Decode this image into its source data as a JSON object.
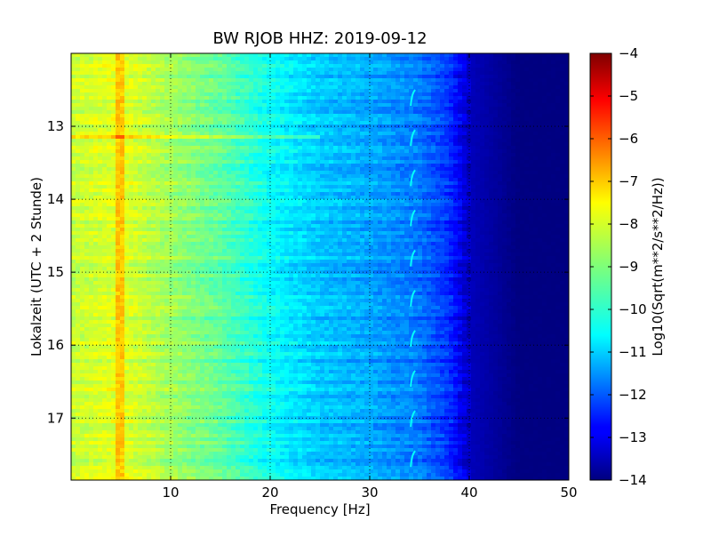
{
  "chart_data": {
    "type": "heatmap",
    "title": "BW RJOB HHZ: 2019-09-12",
    "xlabel": "Frequency [Hz]",
    "ylabel": "Lokalzeit (UTC + 2 Stunde)",
    "xlim": [
      0,
      50
    ],
    "ylim": [
      17.85,
      12.0
    ],
    "x_ticks": [
      10,
      20,
      30,
      40,
      50
    ],
    "y_ticks": [
      13,
      14,
      15,
      16,
      17
    ],
    "grid": true,
    "colormap": "jet",
    "colorbar": {
      "label": "Log10(Sqrt(m**2/s**2/Hz))",
      "range": [
        -14,
        -4
      ],
      "ticks": [
        -4,
        -5,
        -6,
        -7,
        -8,
        -9,
        -10,
        -11,
        -12,
        -13,
        -14
      ]
    },
    "description_points": [
      {
        "freq": 0.5,
        "level": -8.3
      },
      {
        "freq": 5,
        "level": -8.0
      },
      {
        "freq": 10,
        "level": -8.7
      },
      {
        "freq": 15,
        "level": -9.3
      },
      {
        "freq": 20,
        "level": -10.2
      },
      {
        "freq": 25,
        "level": -10.8
      },
      {
        "freq": 30,
        "level": -11.1
      },
      {
        "freq": 35,
        "level": -11.6
      },
      {
        "freq": 38,
        "level": -12.3
      },
      {
        "freq": 40,
        "level": -13.4
      },
      {
        "freq": 45,
        "level": -14.0
      },
      {
        "freq": 50,
        "level": -14.0
      }
    ],
    "features": {
      "persistent_line_freq": 5.0,
      "persistent_line_level": -7.2,
      "transient_bursts_freq": 34.3,
      "strong_event_time": 13.15
    }
  }
}
